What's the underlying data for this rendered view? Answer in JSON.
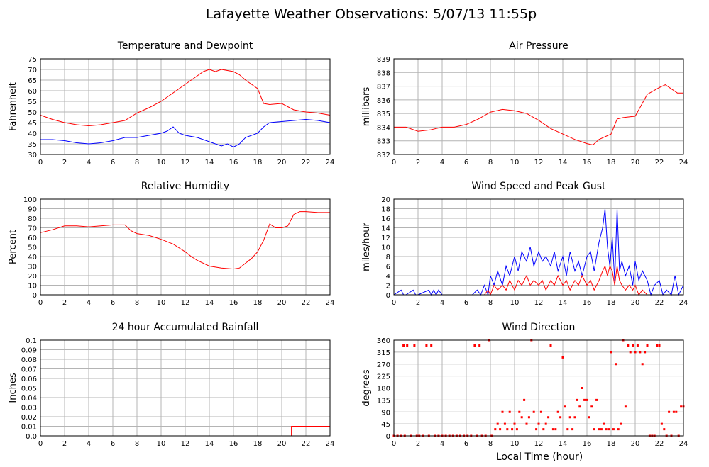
{
  "title": "Lafayette Weather Observations: 5/07/13 11:55p",
  "xaxis_label": "Local Time (hour)",
  "colors": {
    "red": "#ff0000",
    "blue": "#0000ff"
  },
  "chart_data": [
    {
      "id": "temp",
      "type": "line",
      "title": "Temperature and Dewpoint",
      "ylabel": "Fahrenheit",
      "xlim": [
        0,
        24
      ],
      "ylim": [
        30,
        75
      ],
      "xticks": [
        "0",
        "2",
        "4",
        "6",
        "8",
        "10",
        "12",
        "14",
        "16",
        "18",
        "20",
        "22",
        "24"
      ],
      "yticks": [
        "30",
        "35",
        "40",
        "45",
        "50",
        "55",
        "60",
        "65",
        "70",
        "75"
      ],
      "grid": true,
      "series": [
        {
          "color": "red",
          "x": [
            0,
            1,
            2,
            3,
            4,
            5,
            6,
            7,
            8,
            9,
            10,
            11,
            12,
            12.5,
            13,
            13.5,
            14,
            14.5,
            15,
            15.5,
            16,
            16.5,
            17,
            17.5,
            18,
            18.5,
            19,
            20,
            21,
            22,
            23,
            24
          ],
          "y": [
            48.5,
            46.5,
            45,
            44,
            43.5,
            44,
            45,
            46,
            49.5,
            52,
            55,
            59,
            63,
            65,
            67,
            69,
            70,
            69,
            70,
            69.5,
            69,
            67.5,
            65,
            63,
            61,
            54,
            53.5,
            54,
            51,
            50,
            49.5,
            48.5
          ]
        },
        {
          "color": "blue",
          "x": [
            0,
            1,
            2,
            3,
            4,
            5,
            6,
            7,
            8,
            9,
            10,
            10.5,
            11,
            11.5,
            12,
            13,
            14,
            14.5,
            15,
            15.5,
            16,
            16.5,
            17,
            18,
            18.5,
            19,
            20,
            21,
            22,
            23,
            24
          ],
          "y": [
            37,
            37,
            36.5,
            35.5,
            35,
            35.5,
            36.5,
            38,
            38,
            39,
            40,
            41,
            43,
            40,
            39,
            38,
            36,
            35,
            34,
            35,
            33.5,
            35,
            38,
            40,
            43,
            45,
            45.5,
            46,
            46.5,
            46,
            45
          ]
        }
      ]
    },
    {
      "id": "pressure",
      "type": "line",
      "title": "Air Pressure",
      "ylabel": "millibars",
      "xlim": [
        0,
        24
      ],
      "ylim": [
        832,
        839
      ],
      "xticks": [
        "0",
        "2",
        "4",
        "6",
        "8",
        "10",
        "12",
        "14",
        "16",
        "18",
        "20",
        "22",
        "24"
      ],
      "yticks": [
        "832",
        "833",
        "834",
        "835",
        "836",
        "837",
        "838",
        "839"
      ],
      "grid": true,
      "series": [
        {
          "color": "red",
          "x": [
            0,
            1,
            2,
            3,
            4,
            5,
            6,
            7,
            8,
            9,
            10,
            11,
            12,
            13,
            14,
            15,
            16,
            16.5,
            17,
            18,
            18.5,
            19,
            20,
            20.5,
            21,
            22,
            22.5,
            23,
            23.5,
            24
          ],
          "y": [
            834,
            834,
            833.7,
            833.8,
            834,
            834,
            834.2,
            834.6,
            835.1,
            835.3,
            835.2,
            835,
            834.5,
            833.9,
            833.5,
            833.1,
            832.8,
            832.7,
            833.1,
            833.5,
            834.6,
            834.7,
            834.8,
            835.6,
            836.4,
            836.9,
            837.1,
            836.8,
            836.5,
            836.5
          ]
        }
      ]
    },
    {
      "id": "humidity",
      "type": "line",
      "title": "Relative Humidity",
      "ylabel": "Percent",
      "xlim": [
        0,
        24
      ],
      "ylim": [
        0,
        100
      ],
      "xticks": [
        "0",
        "2",
        "4",
        "6",
        "8",
        "10",
        "12",
        "14",
        "16",
        "18",
        "20",
        "22",
        "24"
      ],
      "yticks": [
        "0",
        "10",
        "20",
        "30",
        "40",
        "50",
        "60",
        "70",
        "80",
        "90",
        "100"
      ],
      "grid": true,
      "series": [
        {
          "color": "red",
          "x": [
            0,
            1,
            2,
            3,
            4,
            5,
            6,
            7,
            7.5,
            8,
            9,
            10,
            11,
            12,
            12.5,
            13,
            14,
            15,
            16,
            16.5,
            17,
            17.5,
            18,
            18.5,
            19,
            19.5,
            20,
            20.5,
            21,
            21.5,
            22,
            23,
            24
          ],
          "y": [
            65,
            68,
            72,
            72,
            71,
            72,
            73,
            73,
            67,
            64,
            62,
            58,
            53,
            45,
            40,
            36,
            30,
            28,
            27,
            28,
            33,
            38,
            45,
            57,
            74,
            70,
            70,
            72,
            84,
            87,
            87,
            86,
            86
          ]
        }
      ]
    },
    {
      "id": "wind",
      "type": "line",
      "title": "Wind Speed and Peak Gust",
      "ylabel": "miles/hour",
      "xlim": [
        0,
        24
      ],
      "ylim": [
        0,
        20
      ],
      "xticks": [
        "0",
        "2",
        "4",
        "6",
        "8",
        "10",
        "12",
        "14",
        "16",
        "18",
        "20",
        "22",
        "24"
      ],
      "yticks": [
        "0",
        "2",
        "4",
        "6",
        "8",
        "10",
        "12",
        "14",
        "16",
        "18",
        "20"
      ],
      "grid": true,
      "series": [
        {
          "color": "blue",
          "x": [
            0,
            0.6,
            0.8,
            1,
            1.6,
            1.8,
            2,
            2.9,
            3.1,
            3.3,
            3.5,
            3.7,
            4,
            6.5,
            6.9,
            7.2,
            7.5,
            7.8,
            8,
            8.3,
            8.6,
            9,
            9.3,
            9.6,
            10,
            10.3,
            10.6,
            11,
            11.3,
            11.6,
            12,
            12.3,
            12.6,
            13,
            13.3,
            13.6,
            14,
            14.3,
            14.6,
            15,
            15.3,
            15.6,
            16,
            16.3,
            16.6,
            17,
            17.3,
            17.5,
            17.7,
            17.9,
            18.1,
            18.3,
            18.5,
            18.7,
            18.9,
            19.2,
            19.5,
            19.8,
            20,
            20.3,
            20.6,
            21,
            21.3,
            21.6,
            22,
            22.3,
            22.6,
            23,
            23.3,
            23.6,
            24
          ],
          "y": [
            0,
            1,
            0,
            0,
            1,
            0,
            0,
            1,
            0,
            1,
            0,
            1,
            0,
            0,
            1,
            0,
            2,
            0,
            4,
            2,
            5,
            2,
            6,
            4,
            8,
            5,
            9,
            7,
            10,
            6,
            9,
            7,
            8,
            6,
            9,
            5,
            8,
            4,
            9,
            5,
            7,
            4,
            8,
            9,
            5,
            11,
            14,
            18,
            10,
            6,
            12,
            3,
            18,
            5,
            7,
            4,
            6,
            2,
            7,
            3,
            5,
            3,
            0,
            2,
            3,
            0,
            1,
            0,
            4,
            0,
            2
          ]
        },
        {
          "color": "red",
          "x": [
            0,
            7.5,
            7.8,
            8,
            8.3,
            8.6,
            9,
            9.3,
            9.6,
            10,
            10.3,
            10.6,
            11,
            11.3,
            11.6,
            12,
            12.3,
            12.6,
            13,
            13.3,
            13.6,
            14,
            14.3,
            14.6,
            15,
            15.3,
            15.6,
            16,
            16.3,
            16.6,
            17,
            17.3,
            17.5,
            17.7,
            17.9,
            18.1,
            18.3,
            18.5,
            18.7,
            18.9,
            19.2,
            19.5,
            19.8,
            20,
            20.3,
            20.6,
            21,
            24
          ],
          "y": [
            0,
            0,
            1,
            0,
            2,
            1,
            2,
            1,
            3,
            1,
            3,
            2,
            4,
            2,
            3,
            2,
            3,
            1,
            3,
            2,
            4,
            2,
            3,
            1,
            3,
            2,
            4,
            2,
            3,
            1,
            3,
            5,
            6,
            4,
            6,
            5,
            2,
            6,
            3,
            2,
            1,
            2,
            1,
            2,
            0,
            1,
            0,
            0
          ]
        }
      ]
    },
    {
      "id": "rain",
      "type": "line",
      "title": "24 hour Accumulated Rainfall",
      "ylabel": "Inches",
      "xlim": [
        0,
        24
      ],
      "ylim": [
        0,
        0.1
      ],
      "xticks": [
        "0",
        "2",
        "4",
        "6",
        "8",
        "10",
        "12",
        "14",
        "16",
        "18",
        "20",
        "22",
        "24"
      ],
      "yticks": [
        "0.0",
        "0.01",
        "0.02",
        "0.03",
        "0.04",
        "0.05",
        "0.06",
        "0.07",
        "0.08",
        "0.09",
        "0.1"
      ],
      "grid": true,
      "series": [
        {
          "color": "red",
          "x": [
            0,
            20.8,
            20.8,
            24
          ],
          "y": [
            0,
            0,
            0.01,
            0.01
          ]
        }
      ]
    },
    {
      "id": "direction",
      "type": "scatter",
      "title": "Wind Direction",
      "ylabel": "degrees",
      "xlim": [
        0,
        24
      ],
      "ylim": [
        0,
        360
      ],
      "xticks": [
        "0",
        "2",
        "4",
        "6",
        "8",
        "10",
        "12",
        "14",
        "16",
        "18",
        "20",
        "22",
        "24"
      ],
      "yticks": [
        "0",
        "45",
        "90",
        "135",
        "180",
        "225",
        "270",
        "315",
        "360"
      ],
      "grid": true,
      "series": [
        {
          "color": "red",
          "x": [
            0,
            0.3,
            0.6,
            0.8,
            0.9,
            1.1,
            1.4,
            1.7,
            1.9,
            2.1,
            2.4,
            2.7,
            2.9,
            3.1,
            3.4,
            3.7,
            4,
            4.3,
            4.6,
            4.9,
            5.2,
            5.5,
            5.8,
            6.1,
            6.4,
            6.7,
            6.9,
            7.1,
            7.3,
            7.6,
            7.9,
            8.1,
            8.4,
            8.6,
            8.8,
            9,
            9.2,
            9.4,
            9.6,
            9.8,
            10,
            10.2,
            10.4,
            10.6,
            10.8,
            11,
            11.2,
            11.4,
            11.6,
            11.8,
            12,
            12.2,
            12.4,
            12.6,
            12.8,
            13,
            13.2,
            13.4,
            13.6,
            13.8,
            14,
            14.2,
            14.4,
            14.6,
            14.8,
            15,
            15.2,
            15.4,
            15.6,
            15.8,
            16,
            16.2,
            16.4,
            16.6,
            16.8,
            17,
            17.2,
            17.4,
            17.6,
            17.8,
            18,
            18.2,
            18.4,
            18.6,
            18.8,
            19,
            19.2,
            19.4,
            19.6,
            19.8,
            20,
            20.2,
            20.4,
            20.6,
            20.8,
            21,
            21.2,
            21.4,
            21.6,
            21.8,
            22,
            22.2,
            22.4,
            22.6,
            22.8,
            23,
            23.2,
            23.4,
            23.6,
            23.8,
            24
          ],
          "y": [
            0,
            0,
            0,
            340,
            0,
            340,
            0,
            340,
            0,
            0,
            0,
            340,
            0,
            340,
            0,
            0,
            0,
            0,
            0,
            0,
            0,
            0,
            0,
            0,
            0,
            340,
            0,
            340,
            0,
            0,
            360,
            0,
            25,
            45,
            25,
            90,
            45,
            25,
            90,
            25,
            45,
            25,
            90,
            70,
            135,
            45,
            70,
            360,
            90,
            25,
            45,
            90,
            25,
            45,
            70,
            340,
            25,
            25,
            90,
            70,
            295,
            110,
            25,
            70,
            25,
            70,
            135,
            110,
            180,
            135,
            135,
            70,
            110,
            25,
            135,
            25,
            25,
            45,
            25,
            25,
            315,
            25,
            270,
            25,
            45,
            360,
            110,
            340,
            315,
            340,
            315,
            340,
            315,
            270,
            315,
            340,
            0,
            0,
            0,
            340,
            340,
            45,
            25,
            0,
            90,
            0,
            90,
            90,
            0,
            110,
            110
          ]
        }
      ]
    }
  ]
}
